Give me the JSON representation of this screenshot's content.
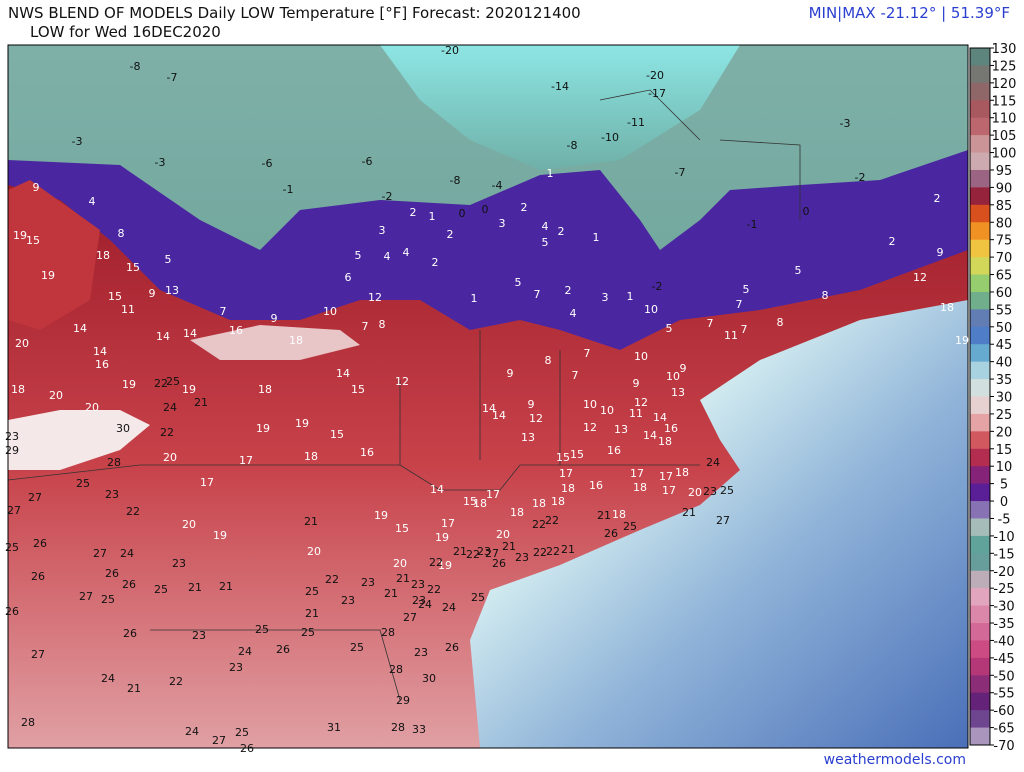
{
  "header": {
    "title": "NWS BLEND OF MODELS Daily LOW Temperature [°F] Forecast: 2020121400",
    "subtitle": "LOW for Wed 16DEC2020",
    "minmax": "MIN|MAX -21.12° | 51.39°F"
  },
  "colorbar": {
    "ticks": [
      130,
      125,
      120,
      115,
      110,
      105,
      100,
      95,
      90,
      85,
      80,
      75,
      70,
      65,
      60,
      55,
      50,
      45,
      40,
      35,
      30,
      25,
      20,
      15,
      10,
      5,
      0,
      -5,
      -10,
      -15,
      -20,
      -25,
      -30,
      -35,
      -40,
      -45,
      -50,
      -55,
      -60,
      -65,
      -70
    ]
  },
  "stations": [
    -20,
    -8,
    -7,
    -14,
    -20,
    -17,
    -3,
    -3,
    -6,
    -6,
    -1,
    -2,
    -8,
    -4,
    1,
    -8,
    -10,
    -11,
    -7,
    -3,
    -2,
    9,
    4,
    8,
    19,
    15,
    18,
    15,
    5,
    13,
    9,
    11,
    15,
    19,
    14,
    20,
    14,
    16,
    14,
    14,
    16,
    7,
    9,
    10,
    12,
    6,
    5,
    4,
    4,
    2,
    2,
    1,
    2,
    3,
    0,
    0,
    3,
    2,
    4,
    5,
    2,
    1,
    1,
    5,
    7,
    2,
    3,
    4,
    1,
    -2,
    10,
    5,
    7,
    11,
    7,
    8,
    5,
    7,
    5,
    8,
    2,
    9,
    12,
    18,
    19,
    0,
    -1,
    2,
    18,
    7,
    8,
    14,
    15,
    12,
    8,
    9,
    7,
    7,
    10,
    9,
    10,
    9,
    13,
    10,
    10,
    12,
    11,
    14,
    16,
    14,
    18,
    14,
    14,
    9,
    12,
    13,
    12,
    13,
    16,
    15,
    15,
    18,
    24,
    17,
    18,
    16,
    17,
    17,
    18,
    17,
    20,
    23,
    25,
    21,
    27,
    18,
    19,
    22,
    25,
    19,
    20,
    20,
    24,
    21,
    18,
    30,
    22,
    23,
    29,
    28,
    20,
    17,
    18,
    16,
    15,
    19,
    19,
    17,
    14,
    15,
    18,
    17,
    18,
    18,
    18,
    21,
    18,
    25,
    26,
    22,
    22,
    19,
    15,
    17,
    19,
    20,
    21,
    22,
    23,
    27,
    21,
    23,
    22,
    22,
    21,
    25,
    27,
    27,
    23,
    22,
    21,
    20,
    19,
    20,
    25,
    26,
    27,
    24,
    26,
    26,
    23,
    25,
    21,
    21,
    25,
    27,
    26,
    26,
    20,
    19,
    26,
    21,
    23,
    22,
    25,
    22,
    23,
    21,
    23,
    21,
    22,
    23,
    24,
    24,
    25,
    27,
    26,
    23,
    25,
    27,
    24,
    21,
    22,
    23,
    24,
    26,
    25,
    28,
    23,
    26,
    25,
    28,
    30,
    29,
    28,
    24,
    27,
    25,
    31,
    28,
    33,
    26
  ],
  "footer": "weathermodels.com"
}
